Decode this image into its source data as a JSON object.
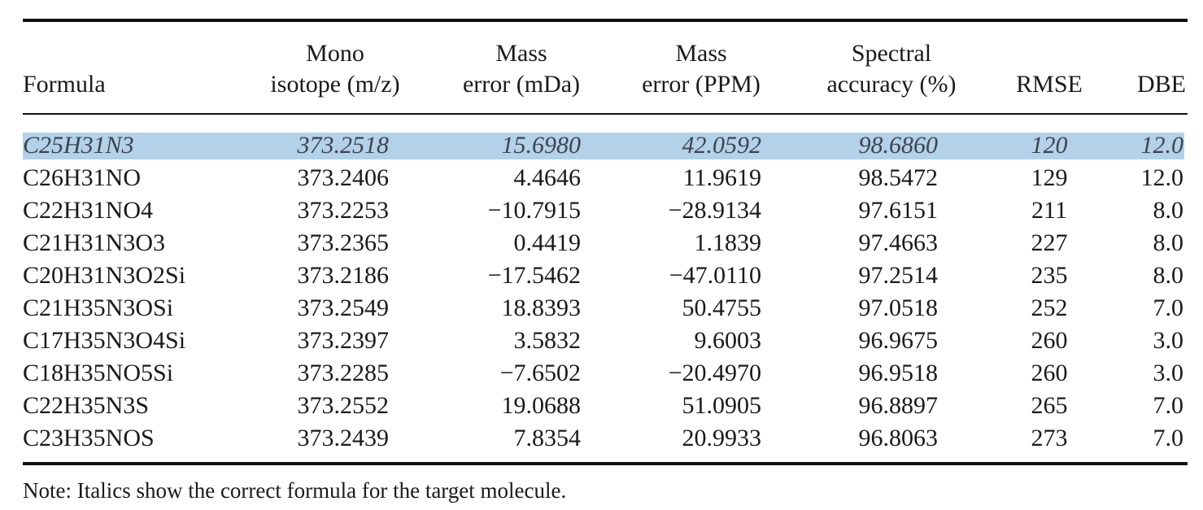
{
  "table": {
    "header": [
      [
        "Formula"
      ],
      [
        "Mono",
        "isotope (m/z)"
      ],
      [
        "Mass",
        "error (mDa)"
      ],
      [
        "Mass",
        "error (PPM)"
      ],
      [
        "Spectral",
        "accuracy (%)"
      ],
      [
        "RMSE"
      ],
      [
        "DBE"
      ]
    ],
    "rows": [
      [
        "C25H31N3",
        "373.2518",
        "15.6980",
        "42.0592",
        "98.6860",
        "120",
        "12.0"
      ],
      [
        "C26H31NO",
        "373.2406",
        "4.4646",
        "11.9619",
        "98.5472",
        "129",
        "12.0"
      ],
      [
        "C22H31NO4",
        "373.2253",
        "−10.7915",
        "−28.9134",
        "97.6151",
        "211",
        "8.0"
      ],
      [
        "C21H31N3O3",
        "373.2365",
        "0.4419",
        "1.1839",
        "97.4663",
        "227",
        "8.0"
      ],
      [
        "C20H31N3O2Si",
        "373.2186",
        "−17.5462",
        "−47.0110",
        "97.2514",
        "235",
        "8.0"
      ],
      [
        "C21H35N3OSi",
        "373.2549",
        "18.8393",
        "50.4755",
        "97.0518",
        "252",
        "7.0"
      ],
      [
        "C17H35N3O4Si",
        "373.2397",
        "3.5832",
        "9.6003",
        "96.9675",
        "260",
        "3.0"
      ],
      [
        "C18H35NO5Si",
        "373.2285",
        "−7.6502",
        "−20.4970",
        "96.9518",
        "260",
        "3.0"
      ],
      [
        "C22H35N3S",
        "373.2552",
        "19.0688",
        "51.0905",
        "96.8897",
        "265",
        "7.0"
      ],
      [
        "C23H35NOS",
        "373.2439",
        "7.8354",
        "20.9933",
        "96.8063",
        "273",
        "7.0"
      ]
    ],
    "note": "Note: Italics show the correct formula for the target molecule."
  }
}
